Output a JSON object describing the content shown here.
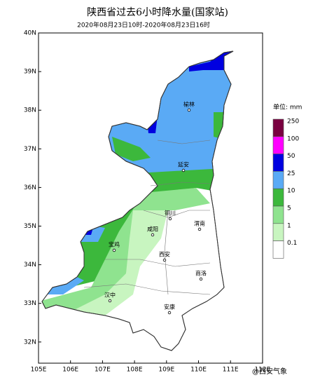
{
  "header": {
    "title": "陕西省过去6小时降水量(国家站)",
    "subtitle": "2020年08月23日10时-2020年08月23日16时"
  },
  "axes": {
    "latitude": [
      "40N",
      "39N",
      "38N",
      "37N",
      "36N",
      "35N",
      "34N",
      "33N",
      "32N"
    ],
    "longitude": [
      "105E",
      "106E",
      "107E",
      "108E",
      "109E",
      "110E",
      "111E",
      "112E"
    ]
  },
  "cities": [
    "榆林",
    "延安",
    "铜川",
    "咸阳",
    "渭南",
    "宝鸡",
    "西安",
    "商洛",
    "汉中",
    "安康"
  ],
  "legend": {
    "unit": "单位: mm",
    "items": [
      {
        "label": "250",
        "color": "#7a0040"
      },
      {
        "label": "100",
        "color": "#ff00ff"
      },
      {
        "label": "50",
        "color": "#0000e0"
      },
      {
        "label": "25",
        "color": "#5aaaf5"
      },
      {
        "label": "10",
        "color": "#3cb83c"
      },
      {
        "label": "5",
        "color": "#8fe38f"
      },
      {
        "label": "1",
        "color": "#c8f5c0"
      },
      {
        "label": "0.1",
        "color": "#ffffff"
      }
    ]
  },
  "watermark": "@西安气象"
}
